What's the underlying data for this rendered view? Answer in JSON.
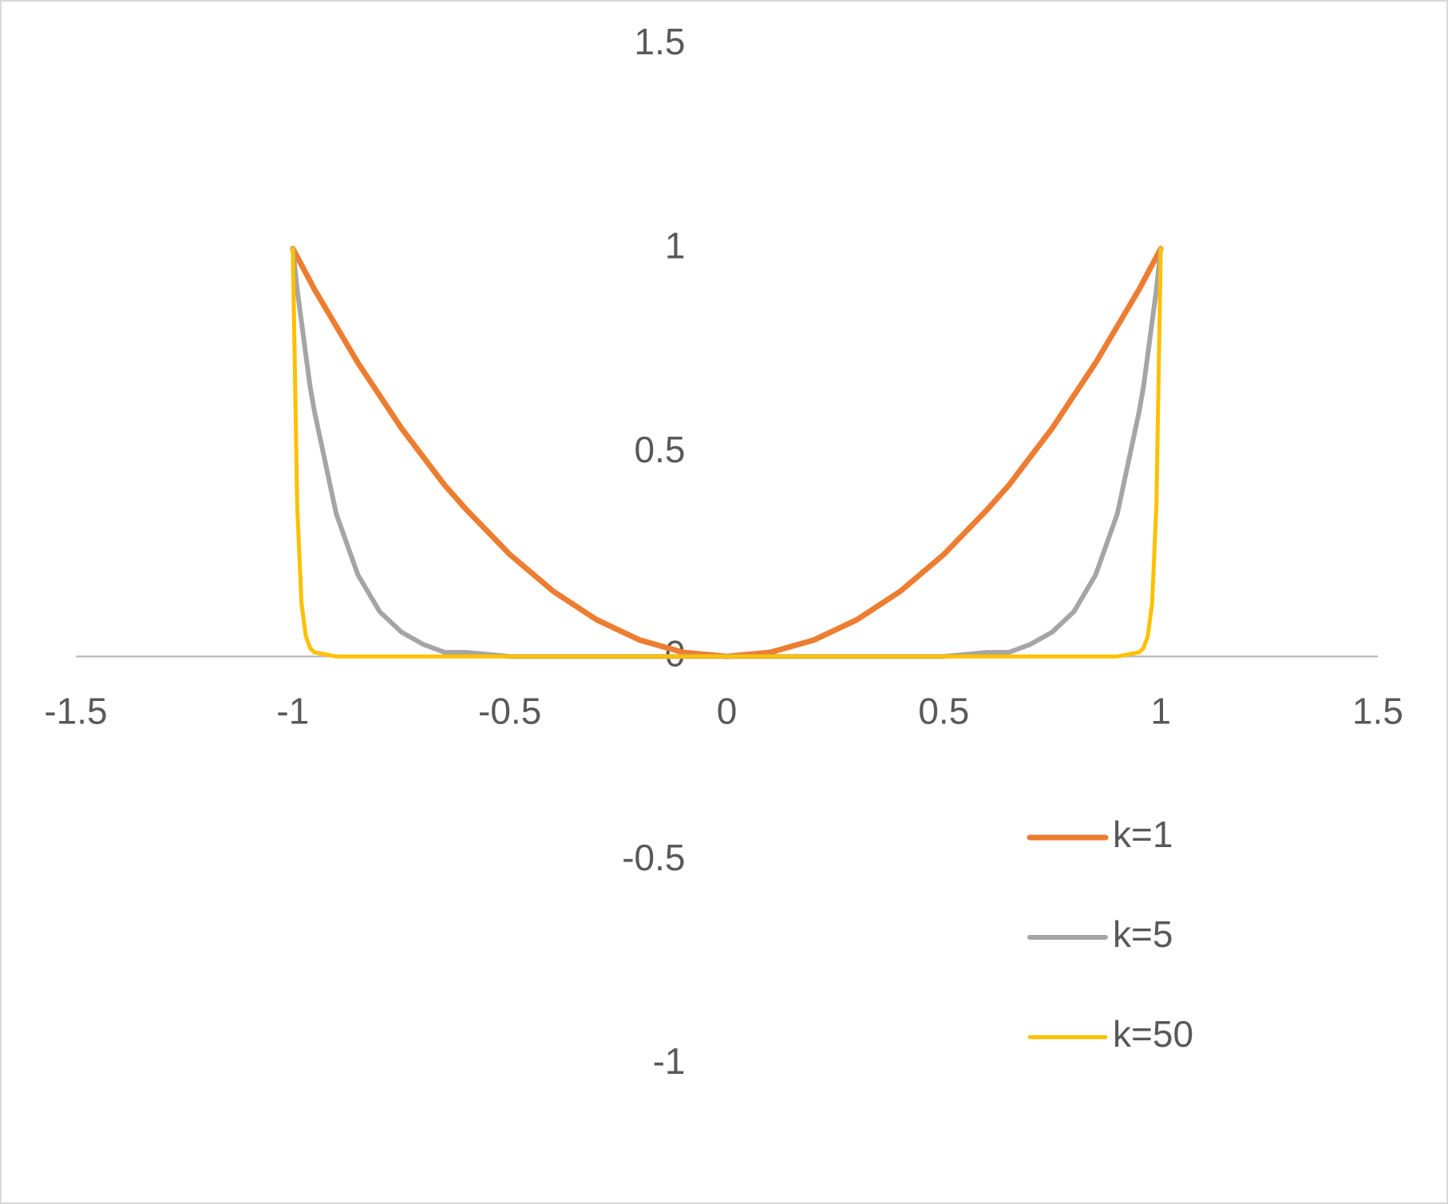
{
  "chart_data": {
    "type": "line",
    "x": [
      -1,
      -0.99,
      -0.98,
      -0.97,
      -0.96,
      -0.95,
      -0.9,
      -0.85,
      -0.8,
      -0.75,
      -0.7,
      -0.65,
      -0.6,
      -0.5,
      -0.4,
      -0.3,
      -0.2,
      -0.1,
      0,
      0.1,
      0.2,
      0.3,
      0.4,
      0.5,
      0.6,
      0.65,
      0.7,
      0.75,
      0.8,
      0.85,
      0.9,
      0.95,
      0.96,
      0.97,
      0.98,
      0.99,
      1
    ],
    "series": [
      {
        "name": "k=1",
        "color": "#ED7D31",
        "values": [
          1,
          0.98,
          0.96,
          0.94,
          0.92,
          0.9,
          0.81,
          0.72,
          0.64,
          0.56,
          0.49,
          0.42,
          0.36,
          0.25,
          0.16,
          0.09,
          0.04,
          0.01,
          0,
          0.01,
          0.04,
          0.09,
          0.16,
          0.25,
          0.36,
          0.42,
          0.49,
          0.56,
          0.64,
          0.72,
          0.81,
          0.9,
          0.92,
          0.94,
          0.96,
          0.98,
          1
        ]
      },
      {
        "name": "k=5",
        "color": "#A5A5A5",
        "values": [
          1,
          0.9,
          0.82,
          0.74,
          0.66,
          0.6,
          0.35,
          0.2,
          0.11,
          0.06,
          0.03,
          0.01,
          0.01,
          0,
          0,
          0,
          0,
          0,
          0,
          0,
          0,
          0,
          0,
          0,
          0.01,
          0.01,
          0.03,
          0.06,
          0.11,
          0.2,
          0.35,
          0.6,
          0.66,
          0.74,
          0.82,
          0.9,
          1
        ]
      },
      {
        "name": "k=50",
        "color": "#FFC000",
        "values": [
          1,
          0.37,
          0.13,
          0.05,
          0.02,
          0.01,
          0,
          0,
          0,
          0,
          0,
          0,
          0,
          0,
          0,
          0,
          0,
          0,
          0,
          0,
          0,
          0,
          0,
          0,
          0,
          0,
          0,
          0,
          0,
          0,
          0,
          0.01,
          0.02,
          0.05,
          0.13,
          0.37,
          1
        ]
      }
    ],
    "xlim": [
      -1.5,
      1.5
    ],
    "xticks": [
      -1.5,
      -1,
      -0.5,
      0,
      0.5,
      1,
      1.5
    ],
    "ylim": [
      -1,
      1.5
    ],
    "yticks": [
      -1,
      -0.5,
      0,
      0.5,
      1,
      1.5
    ],
    "grid": false,
    "legend": "right"
  }
}
